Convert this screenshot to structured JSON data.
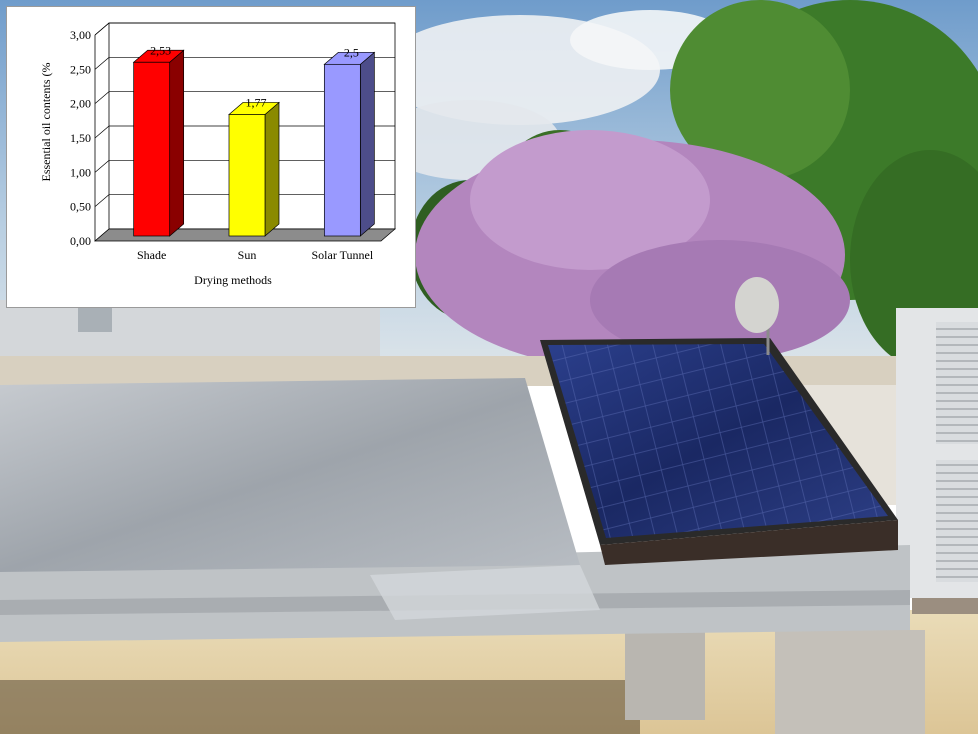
{
  "chart_data": {
    "type": "bar",
    "categories": [
      "Shade",
      "Sun",
      "Solar Tunnel"
    ],
    "values": [
      2.53,
      1.77,
      2.5
    ],
    "value_labels": [
      "2,53",
      "1,77",
      "2,5"
    ],
    "xlabel": "Drying methods",
    "ylabel": "Essential oil contents (%",
    "ylim": [
      0,
      3
    ],
    "yticks": [
      "0,00",
      "0,50",
      "1,00",
      "1,50",
      "2,00",
      "2,50",
      "3,00"
    ],
    "grid": true,
    "colors": [
      "#ff0000",
      "#ffff00",
      "#9999ff"
    ],
    "side_colors": [
      "#8a0000",
      "#8a8a00",
      "#4d4d8a"
    ]
  },
  "colors": {
    "sky": "#a9c4dd",
    "foliage": "#3f7a2a",
    "blossom": "#b98bc4",
    "panel": "#1f2f6b",
    "frame": "#bfc2c4",
    "ground": "#e6d2a6"
  }
}
